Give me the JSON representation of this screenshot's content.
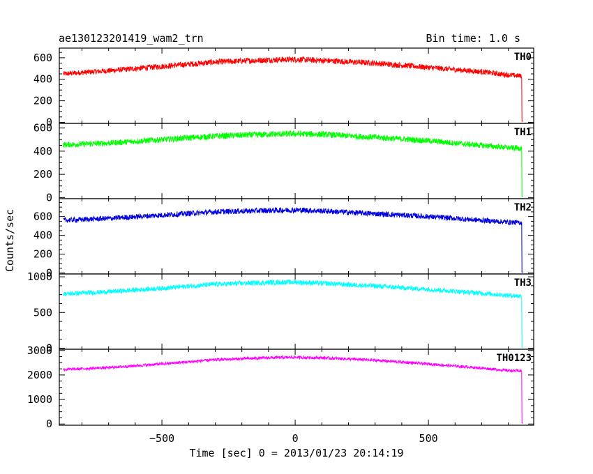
{
  "chart_data": {
    "type": "line",
    "title": "ae130123201419_wam2_trn",
    "bin_time_label": "Bin time: 1.0 s",
    "xlabel": "Time [sec] 0 = 2013/01/23 20:14:19",
    "ylabel": "Counts/sec",
    "xlim": [
      -885,
      895
    ],
    "x_ticks": [
      -500,
      0,
      500
    ],
    "x_tick_labels": [
      "−500",
      "0",
      "500"
    ],
    "panels": [
      {
        "name": "TH0",
        "color": "#ff0000",
        "ylim": [
          -10,
          690
        ],
        "y_ticks": [
          0,
          200,
          400,
          600
        ],
        "y_tick_labels": [
          "0",
          "200",
          "400",
          "600"
        ],
        "x": [
          -870,
          -700,
          -500,
          -300,
          -100,
          0,
          100,
          300,
          500,
          700,
          800,
          850,
          851,
          855
        ],
        "values": [
          450,
          480,
          520,
          560,
          580,
          585,
          575,
          550,
          510,
          470,
          440,
          430,
          10,
          10
        ]
      },
      {
        "name": "TH1",
        "color": "#00ff00",
        "ylim": [
          -10,
          640
        ],
        "y_ticks": [
          0,
          200,
          400,
          600
        ],
        "y_tick_labels": [
          "0",
          "200",
          "400",
          "600"
        ],
        "x": [
          -870,
          -700,
          -500,
          -300,
          -100,
          0,
          100,
          300,
          500,
          700,
          800,
          850,
          851,
          855
        ],
        "values": [
          455,
          470,
          500,
          530,
          545,
          550,
          545,
          520,
          490,
          450,
          430,
          425,
          10,
          10
        ]
      },
      {
        "name": "TH2",
        "color": "#0000dd",
        "ylim": [
          -10,
          790
        ],
        "y_ticks": [
          0,
          200,
          400,
          600
        ],
        "y_tick_labels": [
          "0",
          "200",
          "400",
          "600"
        ],
        "x": [
          -870,
          -700,
          -500,
          -300,
          -100,
          0,
          100,
          300,
          500,
          700,
          800,
          850,
          851,
          855
        ],
        "values": [
          560,
          580,
          615,
          650,
          665,
          670,
          660,
          630,
          600,
          560,
          540,
          535,
          10,
          10
        ]
      },
      {
        "name": "TH3",
        "color": "#00ffff",
        "ylim": [
          -15,
          1040
        ],
        "y_ticks": [
          0,
          500,
          1000
        ],
        "y_tick_labels": [
          "0",
          "500",
          "1000"
        ],
        "x": [
          -870,
          -700,
          -500,
          -300,
          -100,
          0,
          100,
          300,
          500,
          700,
          800,
          850,
          851,
          855
        ],
        "values": [
          760,
          790,
          840,
          895,
          920,
          925,
          910,
          870,
          825,
          770,
          740,
          730,
          15,
          15
        ]
      },
      {
        "name": "TH0123",
        "color": "#ff00ff",
        "ylim": [
          -50,
          3050
        ],
        "y_ticks": [
          0,
          1000,
          2000,
          3000
        ],
        "y_tick_labels": [
          "0",
          "1000",
          "2000",
          "3000"
        ],
        "x": [
          -870,
          -700,
          -500,
          -300,
          -100,
          0,
          100,
          300,
          500,
          700,
          800,
          850,
          851,
          855
        ],
        "values": [
          2220,
          2300,
          2450,
          2620,
          2700,
          2720,
          2700,
          2600,
          2450,
          2280,
          2180,
          2160,
          40,
          40
        ]
      }
    ]
  }
}
